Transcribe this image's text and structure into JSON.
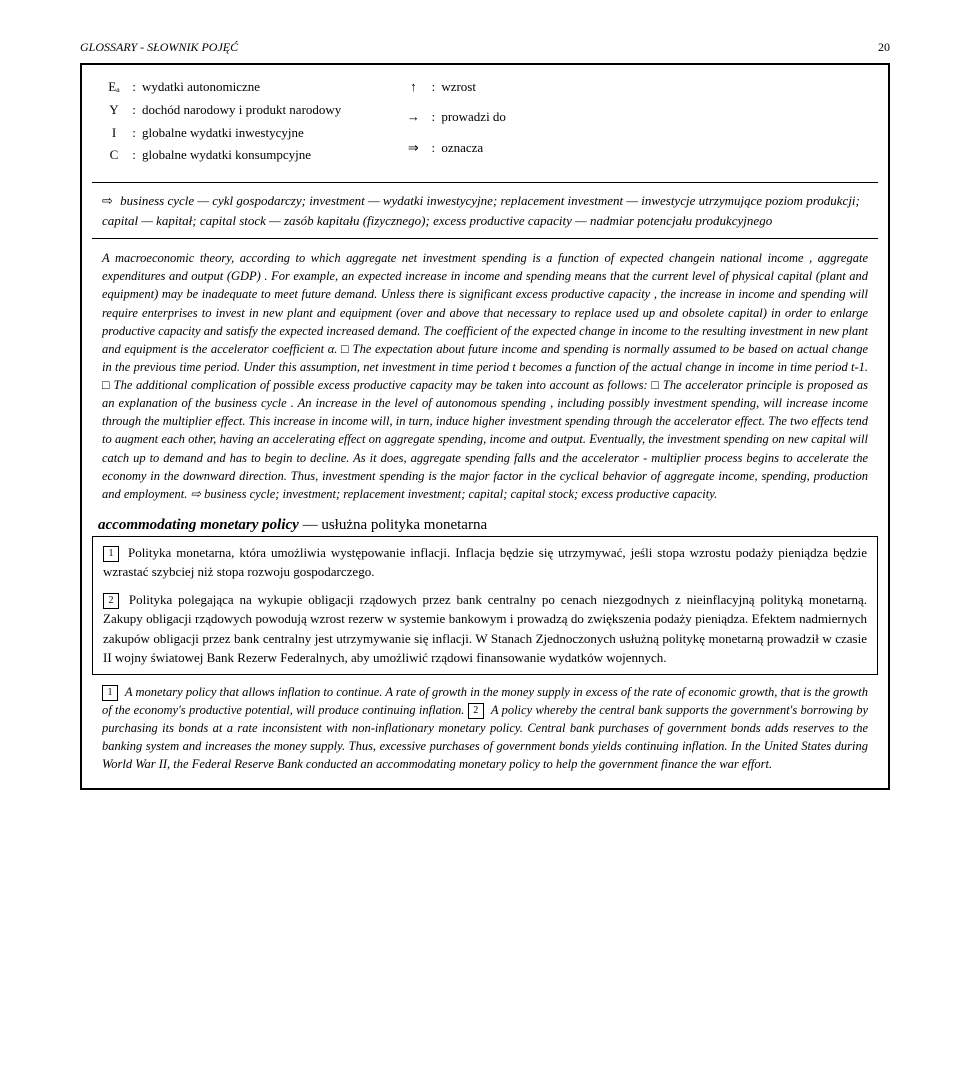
{
  "header": {
    "left": "GLOSSARY - SŁOWNIK POJĘĆ",
    "page": "20"
  },
  "symbols_left": [
    {
      "sym": "Eₐ",
      "def": "wydatki autonomiczne"
    },
    {
      "sym": "Y",
      "def": "dochód narodowy i produkt narodowy"
    },
    {
      "sym": "I",
      "def": "globalne wydatki inwestycyjne"
    },
    {
      "sym": "C",
      "def": "globalne wydatki konsumpcyjne"
    }
  ],
  "symbols_right": [
    {
      "sym": "↑",
      "def": "wzrost"
    },
    {
      "sym": "→",
      "def": "prowadzi do"
    },
    {
      "sym": "⇒",
      "def": "oznacza"
    }
  ],
  "defn": {
    "arrow": "⇨",
    "text": "business cycle — cykl gospodarczy; investment — wydatki inwestycyjne; replacement investment — inwestycje utrzymujące poziom produkcji; capital — kapitał; capital stock — zasób kapitału (fizycznego); excess productive capacity — nadmiar potencjału produkcyjnego"
  },
  "theory": "A macroeconomic theory, according to which aggregate net investment spending is a function of expected changein national income , aggregate expenditures and output (GDP) . For example, an expected increase in income and spending means that the current level of physical capital (plant and equipment) may be inadequate to meet future demand. Unless there is significant excess productive capacity , the increase in income and spending will require enterprises to invest in new plant and equipment (over and above that necessary to replace used up and obsolete capital) in order to enlarge productive capacity and satisfy the expected increased demand. The coefficient of the expected change in income to the resulting investment in new plant and equipment is the accelerator coefficient α. □ The expectation about future income and spending is normally assumed to be based on actual change in the previous time period. Under this assumption, net investment in time period t becomes a function of the actual change in income in time period t-1. □ The additional complication of possible excess productive capacity may be taken into account as follows: □ The accelerator principle is proposed as an explanation of the business cycle . An increase in the level of autonomous spending , including possibly investment spending, will increase income through the multiplier effect. This increase in income will, in turn, induce higher investment spending through the accelerator effect. The two effects tend to augment each other, having an accelerating effect on aggregate spending, income and output. Eventually, the investment spending on new capital will catch up to demand and has to begin to decline. As it does, aggregate spending falls and the accelerator - multiplier process begins to accelerate the economy in the downward direction. Thus, investment spending is the major factor in the cyclical behavior of aggregate income, spending, production and employment. ⇨ business cycle; investment; replacement investment; capital; capital stock; excess productive capacity.",
  "entry": {
    "term": "accommodating monetary policy",
    "sep": "—",
    "trans": "usłużna polityka monetarna"
  },
  "polish": {
    "p1_num": "1",
    "p1": "Polityka monetarna, która umożliwia występowanie inflacji. Inflacja będzie się utrzymywać, jeśli stopa wzrostu podaży pieniądza będzie wzrastać szybciej niż stopa rozwoju gospodarczego.",
    "p2_num": "2",
    "p2": "Polityka polegająca na wykupie obligacji rządowych przez bank centralny po cenach niezgodnych z nieinflacyjną polityką monetarną. Zakupy obligacji rządowych powodują wzrost rezerw w systemie bankowym i prowadzą do zwiększenia podaży pieniądza. Efektem nadmiernych zakupów obligacji przez bank centralny jest utrzymywanie się inflacji. W Stanach Zjednoczonych usłużną politykę monetarną prowadził w czasie II wojny światowej Bank Rezerw Federalnych, aby umożliwić rządowi finansowanie wydatków wojennych."
  },
  "eng": {
    "n1": "1",
    "t1": "A monetary policy that allows inflation to continue. A rate of growth in the money supply in excess of the rate of economic growth, that is the growth of the economy's productive potential, will produce continuing inflation.",
    "n2": "2",
    "t2": "A policy whereby the central bank supports the government's borrowing by purchasing its bonds at a rate inconsistent with non-inflationary monetary policy. Central bank purchases of government bonds adds reserves to the banking system and increases the money supply. Thus, excessive purchases of government bonds yields continuing inflation. In the United States during World War II, the Federal Reserve Bank conducted an accommodating monetary policy to help the government finance the war effort."
  }
}
